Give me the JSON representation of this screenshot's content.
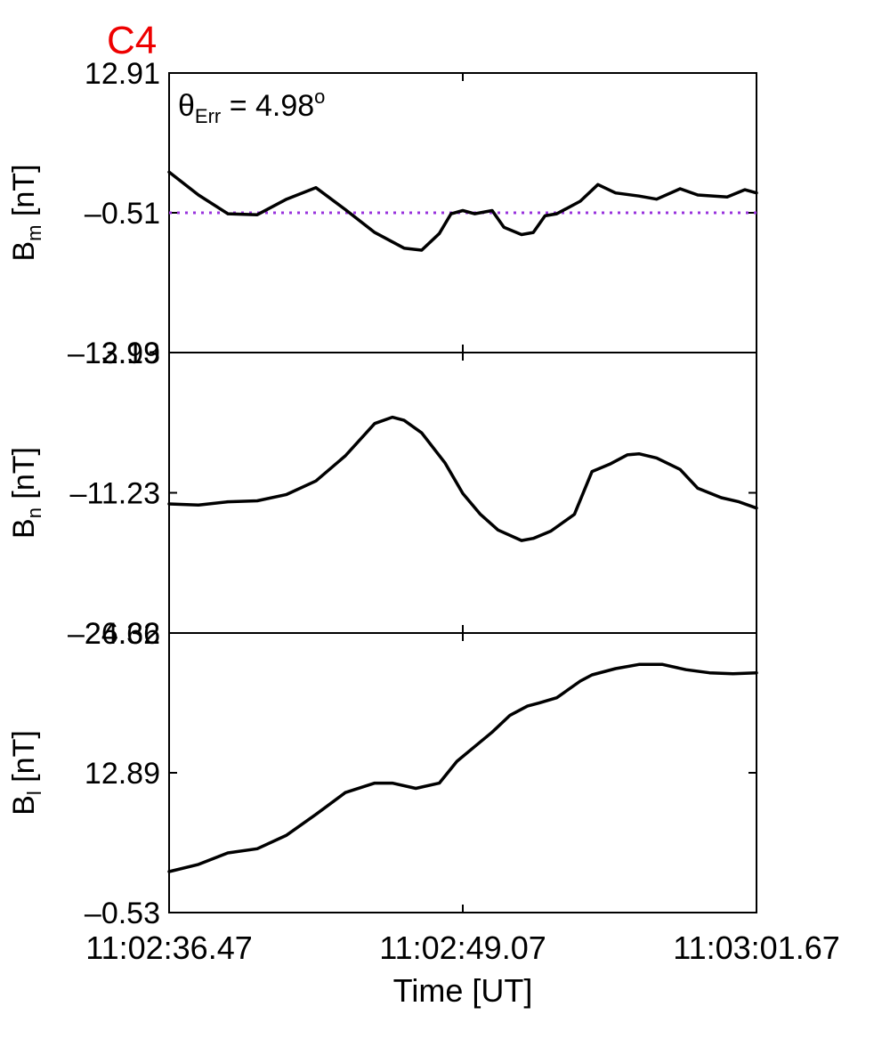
{
  "figure": {
    "label": "C4",
    "label_color": "#ee0000",
    "annotation": {
      "symbol": "θ",
      "subscript": "Err",
      "value": " =  4.98",
      "superscript": "o"
    },
    "xlabel": "Time [UT]",
    "xticklabels": [
      "11:02:36.47",
      "11:02:49.07",
      "11:03:01.67"
    ],
    "line_color": "#000000",
    "reference_color": "#9933dd"
  },
  "chart_data": [
    {
      "type": "line",
      "ylabel": "B",
      "ylabel_sub": "m",
      "ylabel_unit": " [nT]",
      "yticklabels": [
        "12.91",
        "–0.51",
        "–13.93"
      ],
      "ylim": [
        -13.93,
        12.91
      ],
      "xlim": [
        0,
        1
      ],
      "reference_line": -0.51,
      "series": [
        {
          "x": [
            0,
            0.05,
            0.1,
            0.15,
            0.2,
            0.25,
            0.3,
            0.35,
            0.4,
            0.43,
            0.46,
            0.48,
            0.5,
            0.52,
            0.55,
            0.57,
            0.6,
            0.62,
            0.64,
            0.66,
            0.7,
            0.73,
            0.76,
            0.8,
            0.83,
            0.87,
            0.9,
            0.95,
            0.98,
            1.0
          ],
          "y": [
            3.4,
            1.2,
            -0.6,
            -0.7,
            0.8,
            1.9,
            -0.2,
            -2.4,
            -3.9,
            -4.1,
            -2.5,
            -0.6,
            -0.3,
            -0.6,
            -0.3,
            -1.9,
            -2.6,
            -2.4,
            -0.8,
            -0.6,
            0.6,
            2.2,
            1.4,
            1.1,
            0.8,
            1.8,
            1.2,
            1.0,
            1.7,
            1.4
          ]
        }
      ]
    },
    {
      "type": "line",
      "ylabel": "B",
      "ylabel_sub": "n",
      "ylabel_unit": " [nT]",
      "yticklabels": [
        "2.19",
        "–11.23",
        "–24.66"
      ],
      "ylim": [
        -24.66,
        2.19
      ],
      "xlim": [
        0,
        1
      ],
      "series": [
        {
          "x": [
            0,
            0.05,
            0.1,
            0.15,
            0.2,
            0.25,
            0.3,
            0.35,
            0.38,
            0.4,
            0.43,
            0.47,
            0.5,
            0.53,
            0.56,
            0.6,
            0.62,
            0.65,
            0.69,
            0.72,
            0.75,
            0.78,
            0.8,
            0.83,
            0.87,
            0.9,
            0.94,
            0.97,
            1.0
          ],
          "y": [
            -12.3,
            -12.4,
            -12.1,
            -12.0,
            -11.4,
            -10.1,
            -7.7,
            -4.6,
            -4.0,
            -4.3,
            -5.5,
            -8.4,
            -11.3,
            -13.3,
            -14.8,
            -15.8,
            -15.6,
            -14.9,
            -13.3,
            -9.2,
            -8.5,
            -7.6,
            -7.5,
            -7.9,
            -9.0,
            -10.8,
            -11.7,
            -12.1,
            -12.7
          ]
        }
      ]
    },
    {
      "type": "line",
      "ylabel": "B",
      "ylabel_sub": "l",
      "ylabel_unit": " [nT]",
      "yticklabels": [
        "26.32",
        "12.89",
        "–0.53"
      ],
      "ylim": [
        -0.53,
        26.32
      ],
      "xlim": [
        0,
        1
      ],
      "series": [
        {
          "x": [
            0,
            0.05,
            0.1,
            0.15,
            0.2,
            0.25,
            0.3,
            0.35,
            0.38,
            0.42,
            0.46,
            0.49,
            0.52,
            0.55,
            0.58,
            0.61,
            0.63,
            0.66,
            0.7,
            0.72,
            0.76,
            0.8,
            0.84,
            0.88,
            0.92,
            0.96,
            1.0
          ],
          "y": [
            3.4,
            4.1,
            5.2,
            5.6,
            6.9,
            8.9,
            11.0,
            11.9,
            11.9,
            11.4,
            11.9,
            14.0,
            15.4,
            16.8,
            18.4,
            19.3,
            19.6,
            20.1,
            21.7,
            22.3,
            22.9,
            23.3,
            23.3,
            22.8,
            22.5,
            22.4,
            22.5
          ]
        }
      ]
    }
  ]
}
